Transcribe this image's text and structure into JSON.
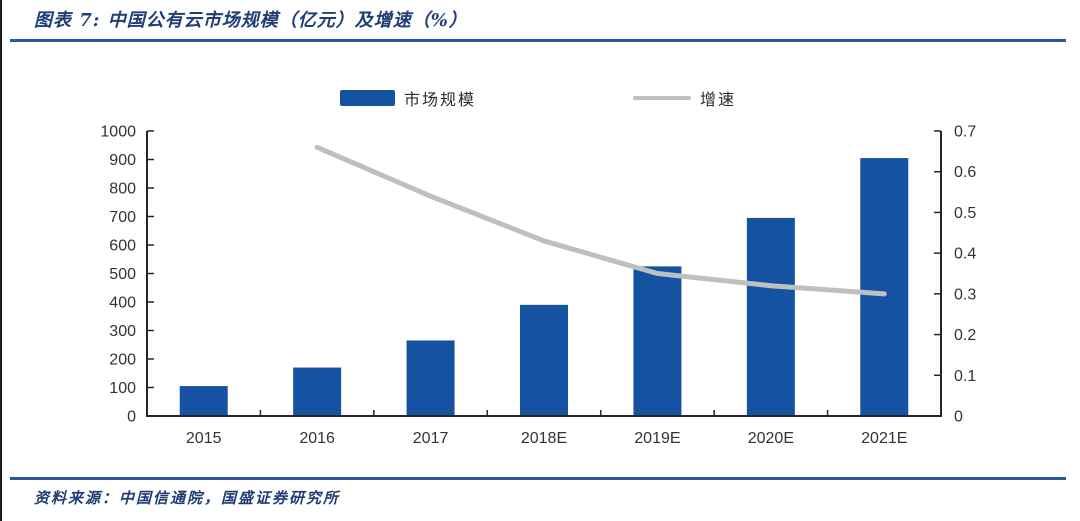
{
  "figure": {
    "title": "图表 7:  中国公有云市场规模（亿元）及增速（%）",
    "source": "资料来源：中国信通院，国盛证券研究所"
  },
  "colors": {
    "bar_blue": "#1652a2",
    "line_gray": "#bfbfbf",
    "rule_blue": "#2b579e",
    "title_navy": "#1f3e75",
    "axis_dark": "#262626"
  },
  "chart_data": {
    "type": "bar",
    "subtype": "bar+line-combo",
    "title": "中国公有云市场规模（亿元）及增速（%）",
    "categories": [
      "2015",
      "2016",
      "2017",
      "2018E",
      "2019E",
      "2020E",
      "2021E"
    ],
    "series": [
      {
        "name": "市场规模",
        "type": "bar",
        "axis": "left",
        "color": "#1652a2",
        "values": [
          105,
          170,
          265,
          390,
          525,
          695,
          905
        ]
      },
      {
        "name": "增速",
        "type": "line",
        "axis": "right",
        "color": "#bfbfbf",
        "values": [
          null,
          0.66,
          0.54,
          0.43,
          0.35,
          0.32,
          0.3
        ]
      }
    ],
    "left_axis": {
      "min": 0,
      "max": 1000,
      "step": 100,
      "ticks": [
        "0",
        "100",
        "200",
        "300",
        "400",
        "500",
        "600",
        "700",
        "800",
        "900",
        "1000"
      ]
    },
    "right_axis": {
      "min": 0,
      "max": 0.7,
      "step": 0.1,
      "ticks": [
        "0",
        "0.1",
        "0.2",
        "0.3",
        "0.4",
        "0.5",
        "0.6",
        "0.7"
      ]
    },
    "legend_position": "top",
    "grid": false
  }
}
